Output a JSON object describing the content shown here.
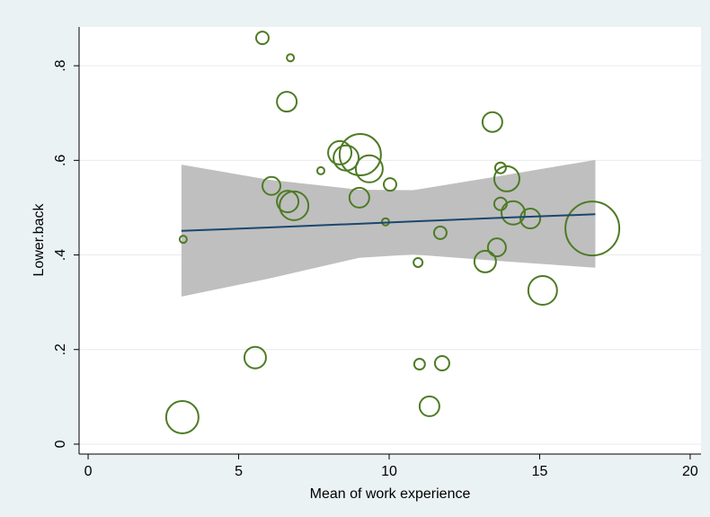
{
  "chart_data": {
    "type": "scatter",
    "x_label": "Mean of work experience",
    "y_label": "Lower.back",
    "x": [
      5.79,
      6.72,
      6.6,
      13.43,
      7.73,
      8.36,
      8.57,
      9.04,
      9.34,
      13.7,
      13.91,
      10.03,
      6.09,
      13.7,
      9.01,
      6.63,
      6.84,
      14.12,
      14.69,
      9.88,
      16.75,
      11.7,
      3.16,
      13.58,
      10.96,
      13.19,
      15.1,
      5.55,
      11.01,
      11.76,
      11.34,
      3.13
    ],
    "y": [
      0.859,
      0.817,
      0.724,
      0.681,
      0.578,
      0.616,
      0.605,
      0.612,
      0.582,
      0.584,
      0.561,
      0.549,
      0.546,
      0.508,
      0.521,
      0.513,
      0.504,
      0.489,
      0.477,
      0.47,
      0.456,
      0.447,
      0.433,
      0.416,
      0.384,
      0.386,
      0.325,
      0.183,
      0.169,
      0.171,
      0.08,
      0.057
    ],
    "sizes": [
      49,
      16,
      121,
      121,
      16,
      169,
      196,
      529,
      225,
      36,
      196,
      49,
      100,
      49,
      121,
      144,
      256,
      169,
      121,
      16,
      900,
      49,
      16,
      100,
      25,
      144,
      256,
      144,
      36,
      64,
      121,
      324
    ],
    "color": "#4e7b25",
    "fit": {
      "x": [
        3.1,
        6.0,
        9.0,
        10.8,
        13.5,
        16.85
      ],
      "y": [
        0.451,
        0.458,
        0.466,
        0.471,
        0.478,
        0.486
      ],
      "upper": [
        0.591,
        0.559,
        0.538,
        0.537,
        0.565,
        0.601
      ],
      "lower": [
        0.312,
        0.35,
        0.394,
        0.401,
        0.388,
        0.373
      ],
      "color": "#1a476f",
      "band_color": "#bfbfbf"
    },
    "xlim": [
      -0.3,
      20.36
    ],
    "ylim": [
      -0.021,
      0.882
    ],
    "xticks": [
      0,
      5,
      10,
      15,
      20
    ],
    "yticks": [
      0,
      {
        "value": 0.2,
        "label": ".2"
      },
      {
        "value": 0.4,
        "label": ".4"
      },
      {
        "value": 0.6,
        "label": ".6"
      },
      {
        "value": 0.8,
        "label": ".8"
      }
    ],
    "grid": true
  }
}
